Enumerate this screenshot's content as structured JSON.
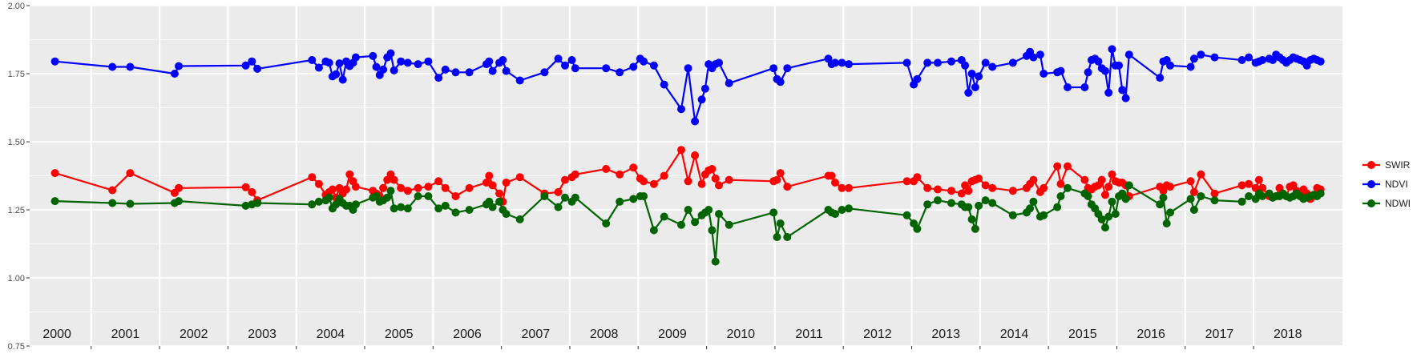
{
  "chart_data": {
    "type": "line",
    "title": "",
    "xlabel": "",
    "ylabel": "",
    "ylim": [
      0.75,
      2.0
    ],
    "xlim": [
      1999.6,
      2018.8
    ],
    "y_ticks": [
      "0.75",
      "1.00",
      "1.25",
      "1.50",
      "1.75",
      "2.00"
    ],
    "year_labels": [
      "2000",
      "2001",
      "2002",
      "2003",
      "2004",
      "2005",
      "2006",
      "2007",
      "2008",
      "2009",
      "2010",
      "2011",
      "2012",
      "2013",
      "2014",
      "2015",
      "2016",
      "2017",
      "2018"
    ],
    "grid": true,
    "legend_position": "right",
    "series": [
      {
        "name": "SWIR",
        "color": "#ff0000",
        "x": [
          1999.97,
          2000.81,
          2001.07,
          2001.72,
          2001.78,
          2002.76,
          2002.85,
          2002.93,
          2003.73,
          2003.83,
          2003.93,
          2003.98,
          2004.03,
          2004.08,
          2004.13,
          2004.18,
          2004.23,
          2004.28,
          2004.33,
          2004.37,
          2004.62,
          2004.67,
          2004.72,
          2004.77,
          2004.83,
          2004.88,
          2004.93,
          2005.03,
          2005.13,
          2005.28,
          2005.43,
          2005.58,
          2005.68,
          2005.83,
          2006.03,
          2006.28,
          2006.32,
          2006.37,
          2006.47,
          2006.52,
          2006.57,
          2006.77,
          2007.13,
          2007.33,
          2007.43,
          2007.53,
          2007.58,
          2008.03,
          2008.23,
          2008.43,
          2008.53,
          2008.58,
          2008.73,
          2008.88,
          2009.13,
          2009.23,
          2009.33,
          2009.43,
          2009.48,
          2009.53,
          2009.58,
          2009.63,
          2009.68,
          2009.83,
          2010.48,
          2010.53,
          2010.58,
          2010.68,
          2011.28,
          2011.33,
          2011.38,
          2011.48,
          2011.58,
          2012.43,
          2012.53,
          2012.58,
          2012.73,
          2012.88,
          2013.08,
          2013.23,
          2013.28,
          2013.33,
          2013.38,
          2013.43,
          2013.48,
          2013.58,
          2013.68,
          2013.98,
          2014.18,
          2014.23,
          2014.28,
          2014.38,
          2014.43,
          2014.63,
          2014.68,
          2014.78,
          2015.03,
          2015.08,
          2015.13,
          2015.18,
          2015.23,
          2015.28,
          2015.33,
          2015.38,
          2015.43,
          2015.48,
          2015.53,
          2015.58,
          2015.63,
          2015.68,
          2016.13,
          2016.18,
          2016.23,
          2016.28,
          2016.58,
          2016.63,
          2016.73,
          2016.93,
          2017.33,
          2017.43,
          2017.53,
          2017.58,
          2017.63,
          2017.73,
          2017.78,
          2017.83,
          2017.88,
          2017.93,
          2017.98,
          2018.03,
          2018.08,
          2018.13,
          2018.18,
          2018.23,
          2018.28,
          2018.33,
          2018.38,
          2018.43,
          2018.48
        ],
        "values": [
          1.385,
          1.322,
          1.385,
          1.312,
          1.33,
          1.333,
          1.315,
          1.285,
          1.37,
          1.345,
          1.305,
          1.315,
          1.325,
          1.295,
          1.33,
          1.31,
          1.325,
          1.38,
          1.355,
          1.335,
          1.32,
          1.31,
          1.3,
          1.33,
          1.36,
          1.38,
          1.36,
          1.33,
          1.32,
          1.33,
          1.335,
          1.355,
          1.33,
          1.3,
          1.33,
          1.35,
          1.375,
          1.34,
          1.31,
          1.28,
          1.35,
          1.37,
          1.31,
          1.315,
          1.36,
          1.37,
          1.38,
          1.4,
          1.38,
          1.405,
          1.365,
          1.355,
          1.345,
          1.375,
          1.47,
          1.355,
          1.45,
          1.345,
          1.38,
          1.395,
          1.4,
          1.365,
          1.34,
          1.36,
          1.355,
          1.36,
          1.385,
          1.335,
          1.375,
          1.375,
          1.35,
          1.33,
          1.33,
          1.355,
          1.355,
          1.37,
          1.33,
          1.325,
          1.32,
          1.31,
          1.34,
          1.32,
          1.355,
          1.36,
          1.365,
          1.34,
          1.33,
          1.32,
          1.33,
          1.345,
          1.36,
          1.315,
          1.33,
          1.41,
          1.345,
          1.41,
          1.36,
          1.33,
          1.325,
          1.335,
          1.34,
          1.36,
          1.305,
          1.335,
          1.38,
          1.355,
          1.35,
          1.35,
          1.34,
          1.3,
          1.335,
          1.32,
          1.34,
          1.335,
          1.355,
          1.315,
          1.38,
          1.31,
          1.34,
          1.345,
          1.33,
          1.36,
          1.33,
          1.3,
          1.295,
          1.3,
          1.33,
          1.31,
          1.3,
          1.335,
          1.34,
          1.32,
          1.3,
          1.325,
          1.31,
          1.29,
          1.3,
          1.33,
          1.325
        ]
      },
      {
        "name": "NDVI",
        "color": "#0000ff",
        "x": [
          1999.97,
          2000.81,
          2001.07,
          2001.72,
          2001.78,
          2002.76,
          2002.85,
          2002.93,
          2003.73,
          2003.83,
          2003.93,
          2003.98,
          2004.03,
          2004.08,
          2004.13,
          2004.18,
          2004.23,
          2004.28,
          2004.33,
          2004.37,
          2004.62,
          2004.67,
          2004.72,
          2004.77,
          2004.83,
          2004.88,
          2004.93,
          2005.03,
          2005.13,
          2005.28,
          2005.43,
          2005.58,
          2005.68,
          2005.83,
          2006.03,
          2006.28,
          2006.32,
          2006.37,
          2006.47,
          2006.52,
          2006.57,
          2006.77,
          2007.13,
          2007.33,
          2007.43,
          2007.53,
          2007.58,
          2008.03,
          2008.23,
          2008.43,
          2008.53,
          2008.58,
          2008.73,
          2008.88,
          2009.13,
          2009.23,
          2009.33,
          2009.43,
          2009.48,
          2009.53,
          2009.58,
          2009.63,
          2009.68,
          2009.83,
          2010.48,
          2010.53,
          2010.58,
          2010.68,
          2011.28,
          2011.33,
          2011.38,
          2011.48,
          2011.58,
          2012.43,
          2012.53,
          2012.58,
          2012.73,
          2012.88,
          2013.08,
          2013.23,
          2013.28,
          2013.33,
          2013.38,
          2013.43,
          2013.48,
          2013.58,
          2013.68,
          2013.98,
          2014.18,
          2014.23,
          2014.28,
          2014.38,
          2014.43,
          2014.63,
          2014.68,
          2014.78,
          2015.03,
          2015.08,
          2015.13,
          2015.18,
          2015.23,
          2015.28,
          2015.33,
          2015.38,
          2015.43,
          2015.48,
          2015.53,
          2015.58,
          2015.63,
          2015.68,
          2016.13,
          2016.18,
          2016.23,
          2016.28,
          2016.58,
          2016.63,
          2016.73,
          2016.93,
          2017.33,
          2017.43,
          2017.53,
          2017.58,
          2017.63,
          2017.73,
          2017.78,
          2017.83,
          2017.88,
          2017.93,
          2017.98,
          2018.03,
          2018.08,
          2018.13,
          2018.18,
          2018.23,
          2018.28,
          2018.33,
          2018.38,
          2018.43,
          2018.48
        ],
        "values": [
          1.795,
          1.775,
          1.775,
          1.75,
          1.778,
          1.78,
          1.795,
          1.768,
          1.8,
          1.772,
          1.795,
          1.79,
          1.74,
          1.748,
          1.788,
          1.728,
          1.795,
          1.778,
          1.79,
          1.81,
          1.815,
          1.775,
          1.745,
          1.765,
          1.81,
          1.825,
          1.762,
          1.795,
          1.79,
          1.785,
          1.795,
          1.735,
          1.765,
          1.755,
          1.755,
          1.785,
          1.795,
          1.76,
          1.79,
          1.8,
          1.76,
          1.725,
          1.755,
          1.805,
          1.78,
          1.8,
          1.77,
          1.77,
          1.755,
          1.775,
          1.805,
          1.795,
          1.78,
          1.71,
          1.62,
          1.77,
          1.575,
          1.655,
          1.695,
          1.785,
          1.77,
          1.785,
          1.79,
          1.715,
          1.77,
          1.73,
          1.72,
          1.77,
          1.805,
          1.785,
          1.79,
          1.79,
          1.785,
          1.79,
          1.71,
          1.73,
          1.79,
          1.79,
          1.795,
          1.8,
          1.78,
          1.68,
          1.75,
          1.7,
          1.74,
          1.79,
          1.775,
          1.79,
          1.815,
          1.83,
          1.81,
          1.82,
          1.75,
          1.755,
          1.76,
          1.7,
          1.7,
          1.755,
          1.8,
          1.805,
          1.795,
          1.77,
          1.76,
          1.68,
          1.84,
          1.78,
          1.78,
          1.69,
          1.66,
          1.82,
          1.735,
          1.795,
          1.8,
          1.78,
          1.775,
          1.805,
          1.82,
          1.81,
          1.8,
          1.81,
          1.79,
          1.795,
          1.8,
          1.805,
          1.8,
          1.82,
          1.81,
          1.8,
          1.79,
          1.8,
          1.81,
          1.805,
          1.8,
          1.795,
          1.78,
          1.8,
          1.805,
          1.8,
          1.795
        ]
      },
      {
        "name": "NDWI",
        "color": "#006400",
        "x": [
          1999.97,
          2000.81,
          2001.07,
          2001.72,
          2001.78,
          2002.76,
          2002.85,
          2002.93,
          2003.73,
          2003.83,
          2003.93,
          2003.98,
          2004.03,
          2004.08,
          2004.13,
          2004.18,
          2004.23,
          2004.28,
          2004.33,
          2004.37,
          2004.62,
          2004.67,
          2004.72,
          2004.77,
          2004.83,
          2004.88,
          2004.93,
          2005.03,
          2005.13,
          2005.28,
          2005.43,
          2005.58,
          2005.68,
          2005.83,
          2006.03,
          2006.28,
          2006.32,
          2006.37,
          2006.47,
          2006.52,
          2006.57,
          2006.77,
          2007.13,
          2007.33,
          2007.43,
          2007.53,
          2007.58,
          2008.03,
          2008.23,
          2008.43,
          2008.53,
          2008.58,
          2008.73,
          2008.88,
          2009.13,
          2009.23,
          2009.33,
          2009.43,
          2009.48,
          2009.53,
          2009.58,
          2009.63,
          2009.68,
          2009.83,
          2010.48,
          2010.53,
          2010.58,
          2010.68,
          2011.28,
          2011.33,
          2011.38,
          2011.48,
          2011.58,
          2012.43,
          2012.53,
          2012.58,
          2012.73,
          2012.88,
          2013.08,
          2013.23,
          2013.28,
          2013.33,
          2013.38,
          2013.43,
          2013.48,
          2013.58,
          2013.68,
          2013.98,
          2014.18,
          2014.23,
          2014.28,
          2014.38,
          2014.43,
          2014.63,
          2014.68,
          2014.78,
          2015.03,
          2015.08,
          2015.13,
          2015.18,
          2015.23,
          2015.28,
          2015.33,
          2015.38,
          2015.43,
          2015.48,
          2015.53,
          2015.58,
          2015.63,
          2015.68,
          2016.13,
          2016.18,
          2016.23,
          2016.28,
          2016.58,
          2016.63,
          2016.73,
          2016.93,
          2017.33,
          2017.43,
          2017.53,
          2017.58,
          2017.63,
          2017.73,
          2017.78,
          2017.83,
          2017.88,
          2017.93,
          2017.98,
          2018.03,
          2018.08,
          2018.13,
          2018.18,
          2018.23,
          2018.28,
          2018.33,
          2018.38,
          2018.43,
          2018.48
        ],
        "values": [
          1.282,
          1.275,
          1.272,
          1.275,
          1.282,
          1.265,
          1.27,
          1.275,
          1.27,
          1.28,
          1.285,
          1.295,
          1.255,
          1.27,
          1.29,
          1.275,
          1.265,
          1.265,
          1.25,
          1.27,
          1.295,
          1.3,
          1.28,
          1.285,
          1.295,
          1.32,
          1.255,
          1.26,
          1.255,
          1.3,
          1.3,
          1.255,
          1.265,
          1.24,
          1.25,
          1.27,
          1.28,
          1.26,
          1.28,
          1.25,
          1.235,
          1.215,
          1.3,
          1.26,
          1.295,
          1.28,
          1.295,
          1.2,
          1.28,
          1.29,
          1.3,
          1.3,
          1.175,
          1.225,
          1.195,
          1.25,
          1.205,
          1.23,
          1.24,
          1.25,
          1.175,
          1.06,
          1.235,
          1.195,
          1.24,
          1.15,
          1.2,
          1.15,
          1.25,
          1.24,
          1.235,
          1.25,
          1.255,
          1.23,
          1.2,
          1.18,
          1.27,
          1.285,
          1.275,
          1.27,
          1.26,
          1.26,
          1.215,
          1.18,
          1.265,
          1.285,
          1.275,
          1.23,
          1.24,
          1.255,
          1.28,
          1.225,
          1.23,
          1.26,
          1.3,
          1.33,
          1.31,
          1.3,
          1.27,
          1.255,
          1.235,
          1.215,
          1.185,
          1.225,
          1.28,
          1.235,
          1.3,
          1.31,
          1.29,
          1.34,
          1.27,
          1.295,
          1.2,
          1.24,
          1.29,
          1.25,
          1.3,
          1.285,
          1.28,
          1.3,
          1.29,
          1.31,
          1.3,
          1.31,
          1.295,
          1.3,
          1.3,
          1.31,
          1.3,
          1.295,
          1.3,
          1.31,
          1.3,
          1.29,
          1.295,
          1.3,
          1.305,
          1.3,
          1.31
        ]
      }
    ]
  }
}
